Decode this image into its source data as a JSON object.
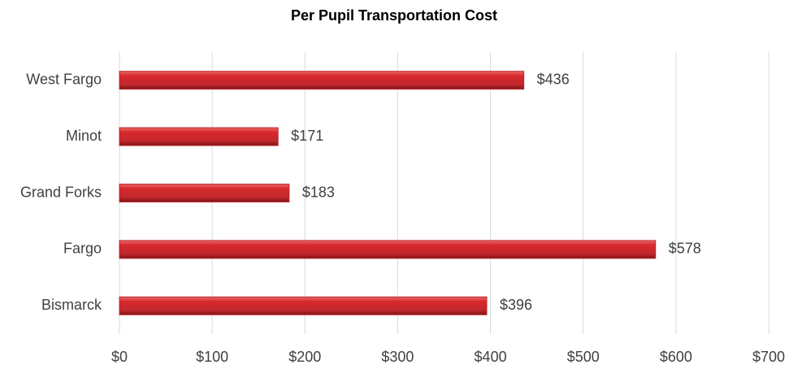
{
  "chart_data": {
    "type": "bar",
    "orientation": "horizontal",
    "title": "Per Pupil Transportation Cost",
    "categories": [
      "West Fargo",
      "Minot",
      "Grand Forks",
      "Fargo",
      "Bismarck"
    ],
    "values": [
      436,
      171,
      183,
      578,
      396
    ],
    "value_labels": [
      "$436",
      "$171",
      "$183",
      "$578",
      "$396"
    ],
    "color": "#c0282d",
    "xlim": [
      0,
      700
    ],
    "xticks": [
      {
        "value": 0,
        "label": "$0"
      },
      {
        "value": 100,
        "label": "$100"
      },
      {
        "value": 200,
        "label": "$200"
      },
      {
        "value": 300,
        "label": "$300"
      },
      {
        "value": 400,
        "label": "$400"
      },
      {
        "value": 500,
        "label": "$500"
      },
      {
        "value": 600,
        "label": "$600"
      },
      {
        "value": 700,
        "label": "$700"
      }
    ],
    "grid": true
  }
}
